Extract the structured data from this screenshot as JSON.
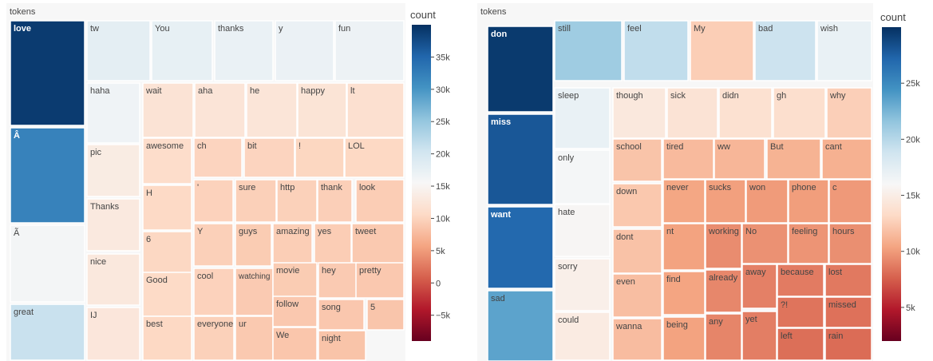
{
  "chart_data": [
    {
      "type": "treemap",
      "root_label": "tokens",
      "colorbar": {
        "title": "count",
        "colorscale": "RdBu",
        "range": [
          -9000,
          40000
        ],
        "ticks": [
          {
            "value": 35000,
            "label": "35k"
          },
          {
            "value": 30000,
            "label": "30k"
          },
          {
            "value": 25000,
            "label": "25k"
          },
          {
            "value": 20000,
            "label": "20k"
          },
          {
            "value": 15000,
            "label": "15k"
          },
          {
            "value": 10000,
            "label": "10k"
          },
          {
            "value": 5000,
            "label": "5k"
          },
          {
            "value": 0,
            "label": "0"
          },
          {
            "value": -5000,
            "label": "−5k"
          }
        ]
      },
      "tokens": [
        {
          "label": "love",
          "count": 39000
        },
        {
          "label": "Â",
          "count": 32000
        },
        {
          "label": "Ã",
          "count": 16000
        },
        {
          "label": "great",
          "count": 21000
        },
        {
          "label": "tw",
          "count": 18000
        },
        {
          "label": "You",
          "count": 17500
        },
        {
          "label": "thanks",
          "count": 17200
        },
        {
          "label": "y",
          "count": 17000
        },
        {
          "label": "fun",
          "count": 16800
        },
        {
          "label": "haha",
          "count": 16500
        },
        {
          "label": "pic",
          "count": 13500
        },
        {
          "label": "Thanks",
          "count": 13000
        },
        {
          "label": "nice",
          "count": 12800
        },
        {
          "label": "IJ",
          "count": 12600
        },
        {
          "label": "wait",
          "count": 12000
        },
        {
          "label": "aha",
          "count": 12200
        },
        {
          "label": "he",
          "count": 12300
        },
        {
          "label": "happy",
          "count": 12100
        },
        {
          "label": "lt",
          "count": 11500
        },
        {
          "label": "awesome",
          "count": 11000
        },
        {
          "label": "ch",
          "count": 10000
        },
        {
          "label": "bit",
          "count": 10000
        },
        {
          "label": "!",
          "count": 10200
        },
        {
          "label": "LOL",
          "count": 10400
        },
        {
          "label": "H",
          "count": 10500
        },
        {
          "label": "6",
          "count": 10300
        },
        {
          "label": "Good",
          "count": 10600
        },
        {
          "label": "best",
          "count": 10400
        },
        {
          "label": "'",
          "count": 9800
        },
        {
          "label": "sure",
          "count": 9600
        },
        {
          "label": "http",
          "count": 9700
        },
        {
          "label": "thank",
          "count": 9500
        },
        {
          "label": "look",
          "count": 9300
        },
        {
          "label": "Y",
          "count": 9600
        },
        {
          "label": "guys",
          "count": 9200
        },
        {
          "label": "amazing",
          "count": 9400
        },
        {
          "label": "yes",
          "count": 9300
        },
        {
          "label": "tweet",
          "count": 9000
        },
        {
          "label": "cool",
          "count": 9800
        },
        {
          "label": "watching",
          "count": 9100
        },
        {
          "label": "movie",
          "count": 9200
        },
        {
          "label": "hey",
          "count": 9100
        },
        {
          "label": "pretty",
          "count": 8900
        },
        {
          "label": "everyone",
          "count": 9700
        },
        {
          "label": "ur",
          "count": 9000
        },
        {
          "label": "follow",
          "count": 8900
        },
        {
          "label": "song",
          "count": 8800
        },
        {
          "label": "5",
          "count": 8600
        },
        {
          "label": "We",
          "count": 8700
        },
        {
          "label": "night",
          "count": 8500
        }
      ]
    },
    {
      "type": "treemap",
      "root_label": "tokens",
      "colorbar": {
        "title": "count",
        "colorscale": "RdBu",
        "range": [
          2000,
          30000
        ],
        "ticks": [
          {
            "value": 25000,
            "label": "25k"
          },
          {
            "value": 20000,
            "label": "20k"
          },
          {
            "value": 15000,
            "label": "15k"
          },
          {
            "value": 10000,
            "label": "10k"
          },
          {
            "value": 5000,
            "label": "5k"
          }
        ]
      },
      "tokens": [
        {
          "label": "don",
          "count": 29500
        },
        {
          "label": "miss",
          "count": 28000
        },
        {
          "label": "want",
          "count": 27000
        },
        {
          "label": "sad",
          "count": 23500
        },
        {
          "label": "still",
          "count": 21000
        },
        {
          "label": "feel",
          "count": 19500
        },
        {
          "label": "My",
          "count": 12500
        },
        {
          "label": "bad",
          "count": 19000
        },
        {
          "label": "wish",
          "count": 17000
        },
        {
          "label": "sleep",
          "count": 17000
        },
        {
          "label": "only",
          "count": 16200
        },
        {
          "label": "hate",
          "count": 15800
        },
        {
          "label": "sorry",
          "count": 15200
        },
        {
          "label": "could",
          "count": 14800
        },
        {
          "label": "though",
          "count": 14500
        },
        {
          "label": "sick",
          "count": 14000
        },
        {
          "label": "didn",
          "count": 13800
        },
        {
          "label": "gh",
          "count": 13600
        },
        {
          "label": "why",
          "count": 12600
        },
        {
          "label": "school",
          "count": 12000
        },
        {
          "label": "tired",
          "count": 11500
        },
        {
          "label": "ww",
          "count": 11300
        },
        {
          "label": "But",
          "count": 11100
        },
        {
          "label": "cant",
          "count": 11000
        },
        {
          "label": "down",
          "count": 12200
        },
        {
          "label": "never",
          "count": 10500
        },
        {
          "label": "sucks",
          "count": 10200
        },
        {
          "label": "won",
          "count": 10000
        },
        {
          "label": "phone",
          "count": 10100
        },
        {
          "label": "c",
          "count": 9900
        },
        {
          "label": "dont",
          "count": 11900
        },
        {
          "label": "nt",
          "count": 10300
        },
        {
          "label": "working",
          "count": 9400
        },
        {
          "label": "No",
          "count": 9600
        },
        {
          "label": "feeling",
          "count": 9700
        },
        {
          "label": "hours",
          "count": 9500
        },
        {
          "label": "even",
          "count": 11700
        },
        {
          "label": "find",
          "count": 10400
        },
        {
          "label": "already",
          "count": 9200
        },
        {
          "label": "away",
          "count": 8900
        },
        {
          "label": "because",
          "count": 8700
        },
        {
          "label": "lost",
          "count": 8600
        },
        {
          "label": "?!",
          "count": 8400
        },
        {
          "label": "missed",
          "count": 8300
        },
        {
          "label": "wanna",
          "count": 11600
        },
        {
          "label": "being",
          "count": 10300
        },
        {
          "label": "any",
          "count": 9100
        },
        {
          "label": "yet",
          "count": 8800
        },
        {
          "label": "left",
          "count": 8200
        },
        {
          "label": "rain",
          "count": 8100
        }
      ]
    }
  ]
}
